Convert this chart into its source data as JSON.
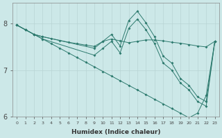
{
  "xlabel": "Humidex (Indice chaleur)",
  "background_color": "#cce8e8",
  "grid_color": "#b8d4d4",
  "line_color": "#2d7a6e",
  "xlim": [
    -0.5,
    23.5
  ],
  "ylim": [
    6.0,
    8.45
  ],
  "yticks": [
    6,
    7,
    8
  ],
  "xticks": [
    0,
    1,
    2,
    3,
    4,
    5,
    6,
    7,
    8,
    9,
    10,
    11,
    12,
    13,
    14,
    15,
    16,
    17,
    18,
    19,
    20,
    21,
    22,
    23
  ],
  "line1_x": [
    0,
    1,
    2,
    3,
    4,
    5,
    6,
    7,
    8,
    9,
    10,
    11,
    12,
    13,
    14,
    15,
    16,
    17,
    18,
    19,
    20,
    21,
    22,
    23
  ],
  "line1_y": [
    7.97,
    7.87,
    7.77,
    7.72,
    7.68,
    7.64,
    7.6,
    7.57,
    7.54,
    7.51,
    7.62,
    7.67,
    7.63,
    7.59,
    7.62,
    7.65,
    7.65,
    7.63,
    7.6,
    7.58,
    7.55,
    7.52,
    7.5,
    7.62
  ],
  "line2_x": [
    0,
    1,
    2,
    3,
    9,
    10,
    11,
    12,
    13,
    14,
    15,
    16,
    17,
    18,
    19,
    20,
    21,
    22,
    23
  ],
  "line2_y": [
    7.97,
    7.87,
    7.77,
    7.72,
    7.47,
    7.62,
    7.77,
    7.52,
    8.07,
    8.27,
    8.02,
    7.72,
    7.3,
    7.15,
    6.82,
    6.67,
    6.42,
    6.32,
    7.62
  ],
  "line3_x": [
    0,
    1,
    2,
    3,
    9,
    10,
    11,
    12,
    13,
    14,
    15,
    16,
    17,
    18,
    19,
    20,
    21,
    22,
    23
  ],
  "line3_y": [
    7.97,
    7.87,
    7.77,
    7.67,
    7.32,
    7.47,
    7.62,
    7.37,
    7.9,
    8.1,
    7.87,
    7.57,
    7.15,
    7.0,
    6.72,
    6.57,
    6.32,
    6.22,
    7.62
  ],
  "line4_x": [
    0,
    1,
    2,
    3,
    4,
    5,
    6,
    7,
    8,
    9,
    10,
    11,
    12,
    13,
    14,
    15,
    16,
    17,
    18,
    19,
    20,
    21,
    22,
    23
  ],
  "line4_y": [
    7.97,
    7.87,
    7.77,
    7.67,
    7.57,
    7.47,
    7.37,
    7.27,
    7.17,
    7.07,
    6.97,
    6.87,
    6.77,
    6.67,
    6.57,
    6.47,
    6.37,
    6.27,
    6.17,
    6.07,
    5.97,
    6.07,
    6.45,
    7.62
  ]
}
